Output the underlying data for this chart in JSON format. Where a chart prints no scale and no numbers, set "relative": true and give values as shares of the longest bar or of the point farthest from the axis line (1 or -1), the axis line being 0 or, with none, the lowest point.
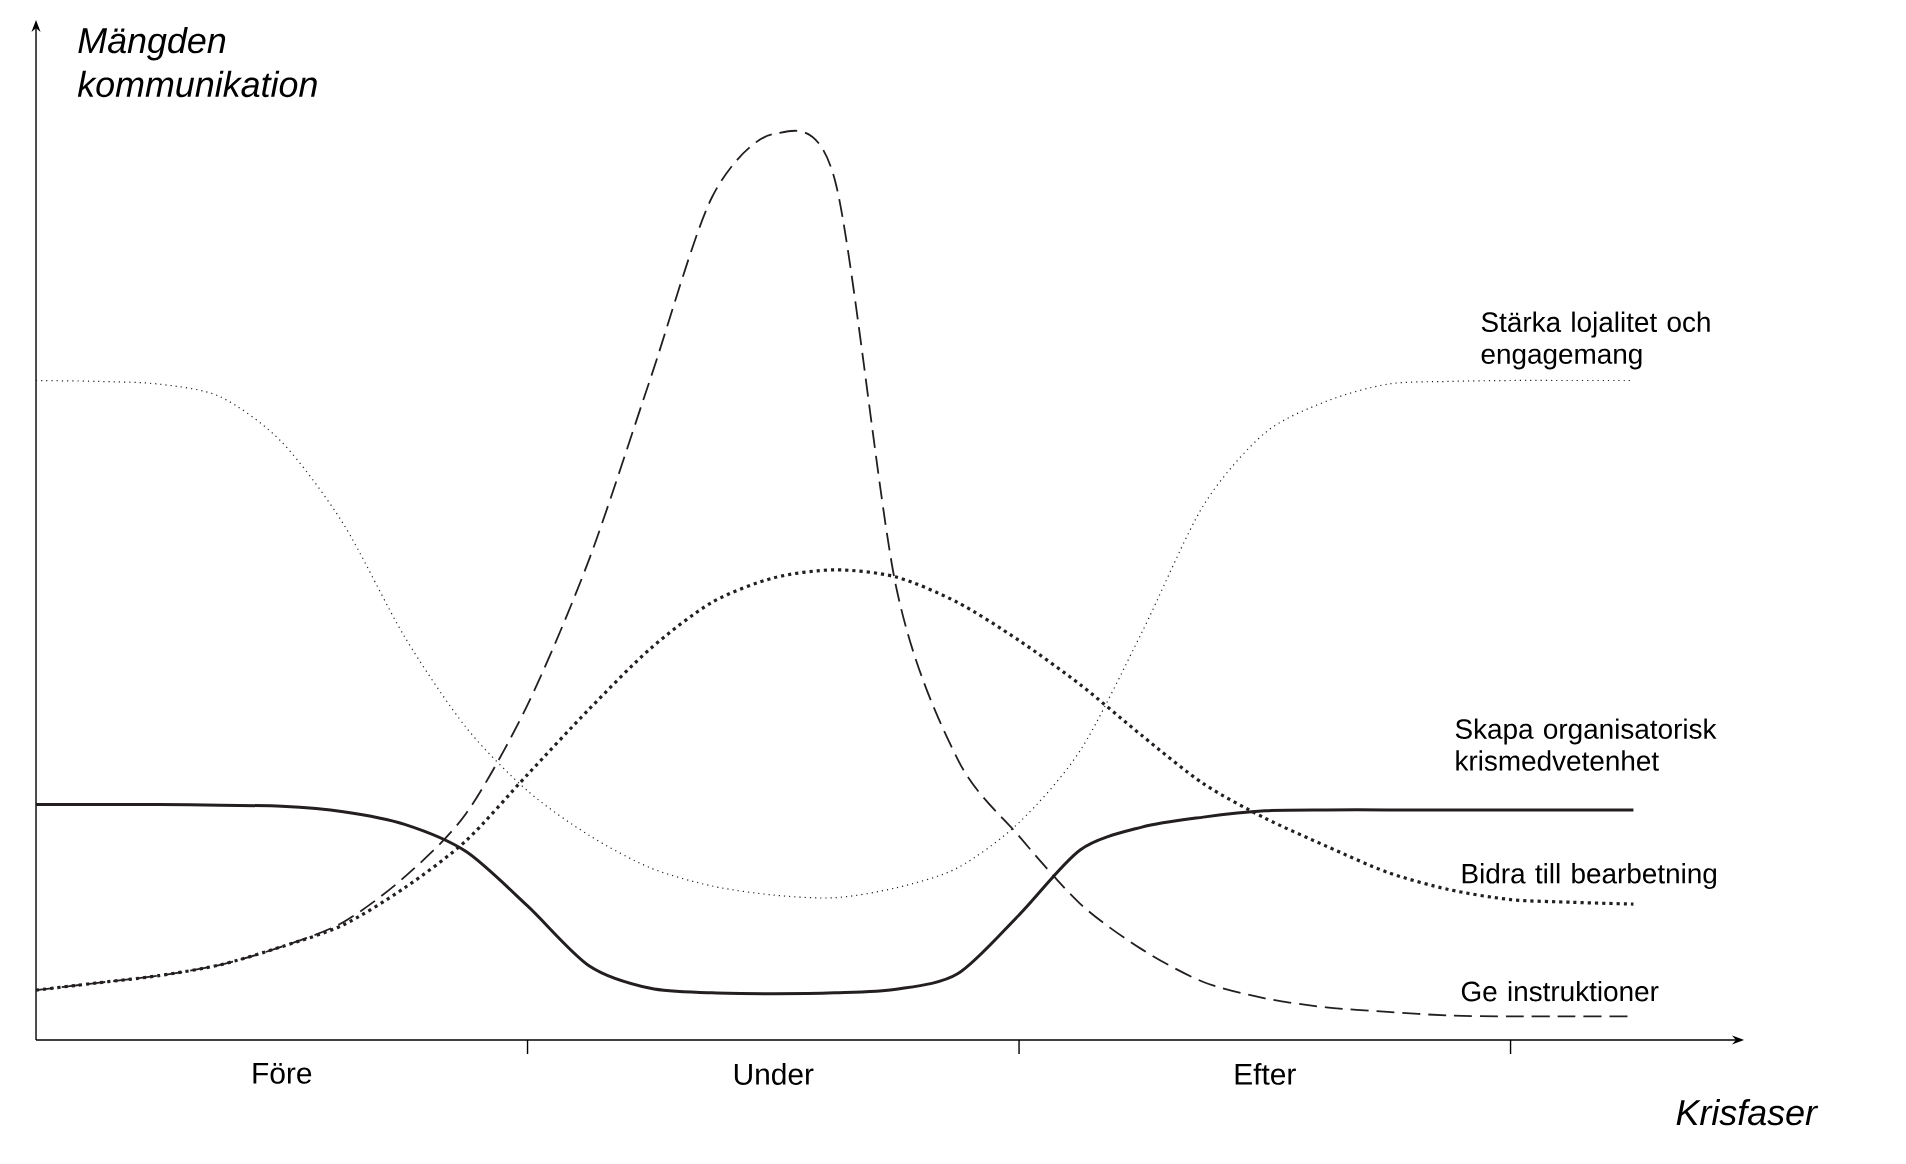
{
  "chart_data": {
    "type": "line",
    "relative": true,
    "ylabel": "Mängden kommunikation",
    "xlabel": "Krisfaser",
    "categories": [
      null,
      null,
      null,
      null,
      "Före",
      null,
      null,
      null,
      null,
      null,
      null,
      null,
      "Under",
      null,
      null,
      null,
      null,
      null,
      null,
      null,
      "Efter",
      null,
      null,
      null,
      null,
      null,
      null
    ],
    "marker": "none",
    "series": [
      {
        "name": "Stärka lojalitet och engagemang",
        "color": "#231f20",
        "line_style": "dotted",
        "values": [
          0.728,
          0.727,
          0.724,
          0.71,
          0.66,
          0.57,
          0.445,
          0.345,
          0.275,
          0.226,
          0.19,
          0.17,
          0.16,
          0.157,
          0.168,
          0.19,
          0.24,
          0.32,
          0.45,
          0.59,
          0.67,
          0.705,
          0.724,
          0.727,
          0.728,
          0.728,
          0.728
        ]
      },
      {
        "name": "Skapa organisatorisk krismedvetenhet",
        "color": "#231f20",
        "line_style": "solid",
        "values": [
          0.26,
          0.26,
          0.26,
          0.259,
          0.258,
          0.252,
          0.238,
          0.208,
          0.148,
          0.082,
          0.057,
          0.052,
          0.051,
          0.052,
          0.056,
          0.073,
          0.138,
          0.21,
          0.235,
          0.246,
          0.253,
          0.254,
          0.254,
          0.254,
          0.254,
          0.254,
          0.254
        ]
      },
      {
        "name": "Bidra till bearbetning",
        "color": "#231f20",
        "line_style": "dotted",
        "values": [
          0.055,
          0.063,
          0.071,
          0.083,
          0.103,
          0.127,
          0.168,
          0.22,
          0.293,
          0.365,
          0.432,
          0.483,
          0.51,
          0.519,
          0.511,
          0.483,
          0.441,
          0.392,
          0.336,
          0.283,
          0.245,
          0.214,
          0.185,
          0.166,
          0.155,
          0.152,
          0.15
        ]
      },
      {
        "name": "Ge instruktioner",
        "color": "#231f20",
        "line_style": "dashed",
        "values": [
          0.055,
          0.063,
          0.071,
          0.083,
          0.103,
          0.13,
          0.18,
          0.25,
          0.37,
          0.53,
          0.73,
          0.93,
          1,
          0.95,
          0.5,
          0.31,
          0.225,
          0.15,
          0.1,
          0.064,
          0.046,
          0.036,
          0.031,
          0.027,
          0.026,
          0.026,
          0.026
        ]
      }
    ]
  }
}
